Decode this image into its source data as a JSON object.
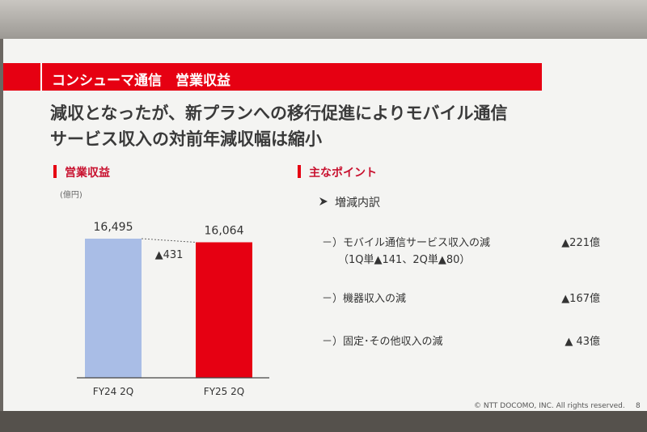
{
  "header": {
    "title": "コンシューマ通信　営業収益"
  },
  "headline": [
    "減収となったが、新プランへの移行促進によりモバイル通信",
    "サービス収入の対前年減収幅は縮小"
  ],
  "chart_data": {
    "type": "bar",
    "title": "営業収益",
    "unit": "(億円)",
    "categories": [
      "FY24 2Q",
      "FY25 2Q"
    ],
    "values": [
      16495,
      16064
    ],
    "value_labels": [
      "16,495",
      "16,064"
    ],
    "colors": [
      "#a9bde6",
      "#e60012"
    ],
    "annotation": "▲431"
  },
  "points": {
    "title": "主なポイント",
    "subtitle": "増減内訳",
    "items": [
      {
        "label": "－）モバイル通信サービス収入の減",
        "note": "（1Q単▲141、2Q単▲80）",
        "amount": "▲221億"
      },
      {
        "label": "－）機器収入の減",
        "amount": "▲167億"
      },
      {
        "label": "－）固定･その他収入の減",
        "amount": "▲ 43億"
      }
    ]
  },
  "footer": {
    "copyright": "© NTT DOCOMO, INC.  All rights reserved.",
    "page": "8"
  }
}
